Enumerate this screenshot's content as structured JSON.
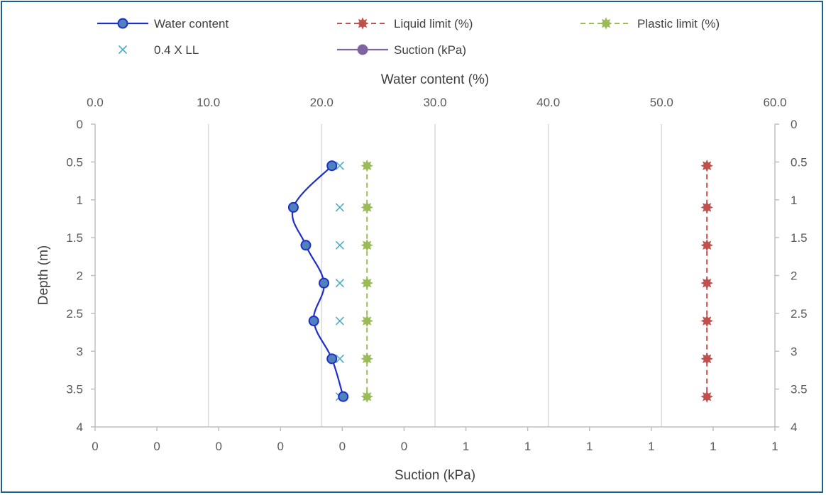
{
  "chart_data": {
    "type": "line",
    "title": "",
    "x_top_axis": {
      "title": "Water content (%)",
      "range": [
        0,
        60
      ],
      "ticks": [
        "0.0",
        "10.0",
        "20.0",
        "30.0",
        "40.0",
        "50.0",
        "60.0"
      ]
    },
    "x_bottom_axis": {
      "title": "Suction (kPa)",
      "ticks": [
        "0",
        "0",
        "0",
        "0",
        "0",
        "0",
        "1",
        "1",
        "1",
        "1",
        "1",
        "1"
      ]
    },
    "y_axis": {
      "title": "Depth (m)",
      "range": [
        0,
        4
      ],
      "reversed": true,
      "ticks": [
        "0",
        "0.5",
        "1",
        "1.5",
        "2",
        "2.5",
        "3",
        "3.5",
        "4"
      ]
    },
    "grid": true,
    "legend_position": "top",
    "series": [
      {
        "name": "Water content",
        "color": "#1f2fc7",
        "marker_fill": "#4f81bd",
        "style": "solid-smooth",
        "marker": "circle",
        "points": [
          [
            20.9,
            0.55
          ],
          [
            17.5,
            1.1
          ],
          [
            18.6,
            1.6
          ],
          [
            20.2,
            2.1
          ],
          [
            19.3,
            2.6
          ],
          [
            20.9,
            3.1
          ],
          [
            21.9,
            3.6
          ]
        ]
      },
      {
        "name": "Liquid limit (%)",
        "color": "#c0504d",
        "style": "dashed",
        "marker": "star",
        "points": [
          [
            54,
            0.55
          ],
          [
            54,
            1.1
          ],
          [
            54,
            1.6
          ],
          [
            54,
            2.1
          ],
          [
            54,
            2.6
          ],
          [
            54,
            3.1
          ],
          [
            54,
            3.6
          ]
        ]
      },
      {
        "name": "Plastic limit (%)",
        "color": "#9bbb59",
        "style": "dashed",
        "marker": "star",
        "points": [
          [
            24,
            0.55
          ],
          [
            24,
            1.1
          ],
          [
            24,
            1.6
          ],
          [
            24,
            2.1
          ],
          [
            24,
            2.6
          ],
          [
            24,
            3.1
          ],
          [
            24,
            3.6
          ]
        ]
      },
      {
        "name": "0.4 X LL",
        "color": "#4bacc6",
        "style": "none",
        "marker": "x",
        "points": [
          [
            21.6,
            0.55
          ],
          [
            21.6,
            1.1
          ],
          [
            21.6,
            1.6
          ],
          [
            21.6,
            2.1
          ],
          [
            21.6,
            2.6
          ],
          [
            21.6,
            3.1
          ],
          [
            21.6,
            3.6
          ]
        ]
      },
      {
        "name": "Suction (kPa)",
        "color": "#8064a2",
        "style": "solid",
        "marker": "circle",
        "points": []
      }
    ]
  },
  "legend": [
    {
      "label": "Water content",
      "series": 0
    },
    {
      "label": "Liquid limit (%)",
      "series": 1
    },
    {
      "label": "Plastic limit (%)",
      "series": 2
    },
    {
      "label": "0.4 X LL",
      "series": 3
    },
    {
      "label": "Suction (kPa)",
      "series": 4
    }
  ]
}
